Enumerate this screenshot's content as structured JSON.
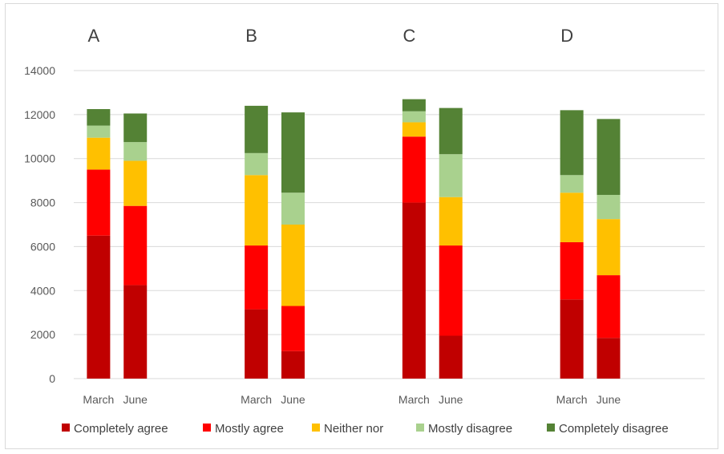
{
  "chart_data": {
    "type": "bar",
    "stacked": true,
    "groups": [
      "A",
      "B",
      "C",
      "D"
    ],
    "categories": [
      "March",
      "June"
    ],
    "ylim": [
      0,
      14000
    ],
    "yticks": [
      0,
      2000,
      4000,
      6000,
      8000,
      10000,
      12000,
      14000
    ],
    "ytick_labels": [
      "0",
      "2000",
      "4000",
      "6000",
      "8000",
      "10000",
      "12000",
      "14000"
    ],
    "grid": true,
    "legend_position": "bottom",
    "series": [
      {
        "name": "Completely agree",
        "color": "#c00000",
        "values": [
          [
            6500,
            4250
          ],
          [
            3150,
            1250
          ],
          [
            8000,
            1950
          ],
          [
            3600,
            1850
          ]
        ]
      },
      {
        "name": "Mostly agree",
        "color": "#ff0000",
        "values": [
          [
            3000,
            3600
          ],
          [
            2900,
            2050
          ],
          [
            3000,
            4100
          ],
          [
            2600,
            2850
          ]
        ]
      },
      {
        "name": "Neither nor",
        "color": "#ffc000",
        "values": [
          [
            1450,
            2050
          ],
          [
            3200,
            3700
          ],
          [
            650,
            2200
          ],
          [
            2250,
            2550
          ]
        ]
      },
      {
        "name": "Mostly disagree",
        "color": "#a9d18e",
        "values": [
          [
            550,
            850
          ],
          [
            1000,
            1450
          ],
          [
            500,
            1950
          ],
          [
            800,
            1100
          ]
        ]
      },
      {
        "name": "Completely disagree",
        "color": "#548235",
        "values": [
          [
            750,
            1300
          ],
          [
            2150,
            3650
          ],
          [
            550,
            2100
          ],
          [
            2950,
            3450
          ]
        ]
      }
    ]
  }
}
